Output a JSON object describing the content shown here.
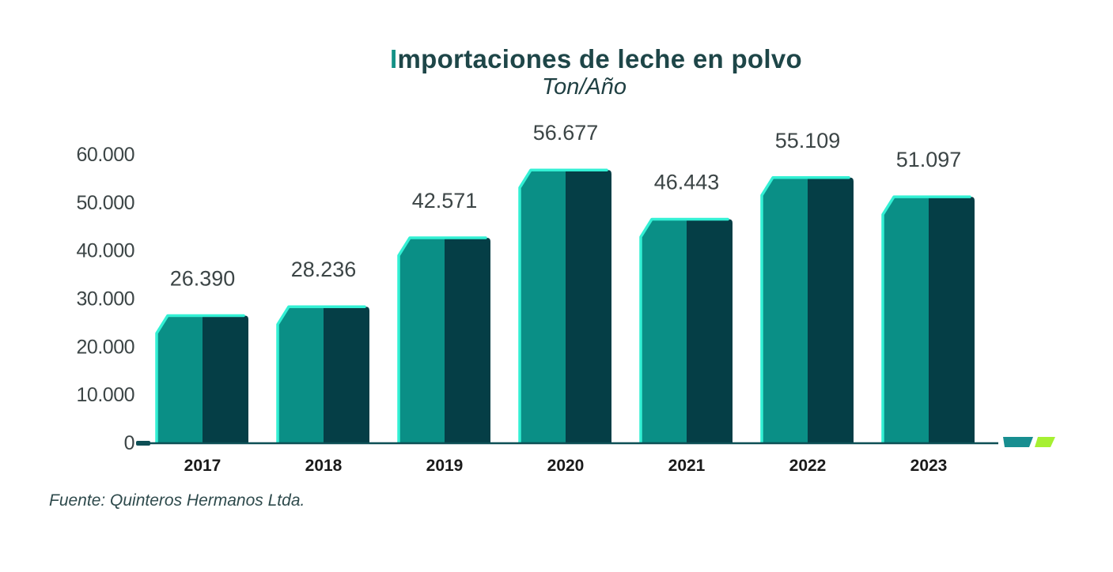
{
  "title_first": "I",
  "title_rest": "mportaciones de leche en polvo",
  "subtitle": "Ton/Año",
  "source": "Fuente: Quinteros Hermanos Ltda.",
  "colors": {
    "bar_left": "#0a8f86",
    "bar_right": "#053e46",
    "bar_highlight": "#33f0d4",
    "axis": "#0d4f55",
    "legend_a": "#188e90",
    "legend_b": "#a6f032"
  },
  "chart_data": {
    "type": "bar",
    "title": "Importaciones de leche en polvo",
    "subtitle": "Ton/Año",
    "categories": [
      "2017",
      "2018",
      "2019",
      "2020",
      "2021",
      "2022",
      "2023"
    ],
    "values": [
      26390,
      28236,
      42571,
      56677,
      46443,
      55109,
      51097
    ],
    "value_labels": [
      "26.390",
      "28.236",
      "42.571",
      "56.677",
      "46.443",
      "55.109",
      "51.097"
    ],
    "ylim": [
      0,
      60000
    ],
    "yticks": [
      0,
      10000,
      20000,
      30000,
      40000,
      50000,
      60000
    ],
    "ytick_labels": [
      "0",
      "10.000",
      "20.000",
      "30.000",
      "40.000",
      "50.000",
      "60.000"
    ],
    "grid": false
  }
}
